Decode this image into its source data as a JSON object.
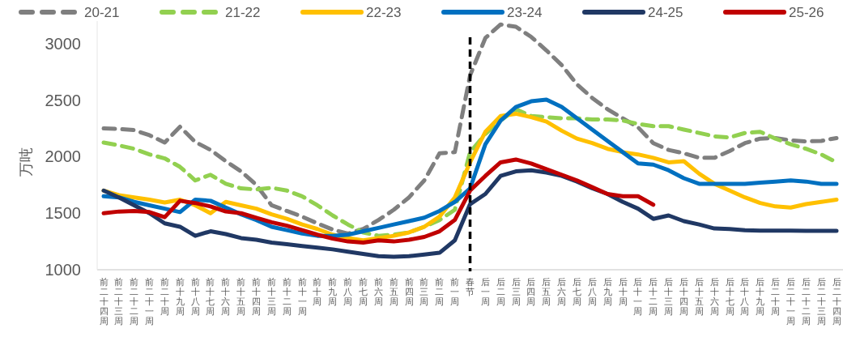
{
  "chart_data": {
    "type": "line",
    "ylabel": "万吨",
    "legend": "top",
    "grid": false,
    "line_style": "solid",
    "marker": "none",
    "categories": [
      "前二十四周",
      "前二十三周",
      "前二十二周",
      "前二十一周",
      "前二十周",
      "前十九周",
      "前十八周",
      "前十七周",
      "前十六周",
      "前十五周",
      "前十四周",
      "前十三周",
      "前十二周",
      "前十一周",
      "前十周",
      "前九周",
      "前八周",
      "前七周",
      "前六周",
      "前五周",
      "前四周",
      "前三周",
      "前二周",
      "前一周",
      "春节",
      "后一周",
      "后二周",
      "后三周",
      "后四周",
      "后五周",
      "后六周",
      "后七周",
      "后八周",
      "后九周",
      "后十周",
      "后十一周",
      "后十二周",
      "后十三周",
      "后十四周",
      "后十五周",
      "后十六周",
      "后十七周",
      "后十八周",
      "后十九周",
      "后二十周",
      "后二十一周",
      "后二十二周",
      "后二十三周",
      "后二十四周"
    ],
    "ylim": [
      1000,
      3200
    ],
    "yticks": [
      1000,
      1500,
      2000,
      2500,
      3000
    ],
    "ref_lines": [
      {
        "axis": "x",
        "value": "春节",
        "color": "#000000",
        "line_style": "dashed"
      }
    ],
    "series": [
      {
        "name": "20-21",
        "color": "#7f7f7f",
        "line_style": "dashed",
        "values": [
          2250,
          2245,
          2235,
          2190,
          2125,
          2265,
          2130,
          2060,
          1960,
          1870,
          1750,
          1570,
          1520,
          1470,
          1410,
          1355,
          1320,
          1360,
          1440,
          1530,
          1640,
          1790,
          2030,
          2040,
          2720,
          3050,
          3170,
          3150,
          3060,
          2940,
          2810,
          2640,
          2520,
          2420,
          2340,
          2260,
          2120,
          2060,
          2030,
          1990,
          1990,
          2050,
          2120,
          2160,
          2165,
          2145,
          2135,
          2140,
          2165
        ]
      },
      {
        "name": "21-22",
        "color": "#92d050",
        "line_style": "dashed",
        "values": [
          2125,
          2100,
          2070,
          2020,
          1985,
          1910,
          1790,
          1840,
          1760,
          1720,
          1710,
          1725,
          1700,
          1650,
          1570,
          1480,
          1400,
          1330,
          1300,
          1310,
          1330,
          1380,
          1440,
          1530,
          2040,
          2200,
          2320,
          2420,
          2360,
          2350,
          2340,
          2340,
          2330,
          2330,
          2320,
          2290,
          2270,
          2270,
          2240,
          2210,
          2180,
          2170,
          2210,
          2220,
          2160,
          2110,
          2070,
          2020,
          1950
        ]
      },
      {
        "name": "22-23",
        "color": "#ffc000",
        "values": [
          1700,
          1660,
          1640,
          1620,
          1595,
          1620,
          1570,
          1500,
          1600,
          1570,
          1540,
          1490,
          1450,
          1400,
          1360,
          1310,
          1280,
          1260,
          1280,
          1300,
          1330,
          1380,
          1470,
          1640,
          1950,
          2220,
          2360,
          2380,
          2350,
          2310,
          2230,
          2160,
          2120,
          2070,
          2040,
          2020,
          1990,
          1950,
          1960,
          1850,
          1760,
          1700,
          1640,
          1590,
          1560,
          1550,
          1580,
          1600,
          1620
        ]
      },
      {
        "name": "23-24",
        "color": "#0070c0",
        "values": [
          1650,
          1640,
          1600,
          1570,
          1540,
          1510,
          1620,
          1610,
          1550,
          1490,
          1440,
          1380,
          1350,
          1320,
          1300,
          1300,
          1310,
          1340,
          1370,
          1400,
          1430,
          1460,
          1520,
          1600,
          1720,
          2110,
          2320,
          2440,
          2490,
          2505,
          2440,
          2340,
          2240,
          2140,
          2040,
          1940,
          1930,
          1880,
          1810,
          1760,
          1760,
          1760,
          1760,
          1770,
          1780,
          1790,
          1780,
          1760,
          1760
        ]
      },
      {
        "name": "24-25",
        "color": "#203864",
        "values": [
          1700,
          1640,
          1570,
          1500,
          1410,
          1380,
          1300,
          1340,
          1315,
          1280,
          1265,
          1240,
          1225,
          1210,
          1195,
          1180,
          1160,
          1140,
          1120,
          1115,
          1120,
          1135,
          1150,
          1260,
          1580,
          1670,
          1830,
          1870,
          1880,
          1860,
          1830,
          1780,
          1720,
          1670,
          1600,
          1540,
          1450,
          1480,
          1430,
          1400,
          1365,
          1360,
          1350,
          1345,
          1345,
          1345,
          1344,
          1344,
          1344
        ]
      },
      {
        "name": "25-26",
        "color": "#c00000",
        "values": [
          1500,
          1515,
          1520,
          1510,
          1465,
          1610,
          1590,
          1560,
          1515,
          1500,
          1460,
          1420,
          1390,
          1350,
          1310,
          1275,
          1250,
          1240,
          1260,
          1250,
          1265,
          1290,
          1340,
          1440,
          1700,
          1830,
          1950,
          1975,
          1940,
          1890,
          1840,
          1790,
          1730,
          1670,
          1650,
          1650,
          1575,
          null,
          null,
          null,
          null,
          null,
          null,
          null,
          null,
          null,
          null,
          null,
          null
        ]
      }
    ]
  }
}
